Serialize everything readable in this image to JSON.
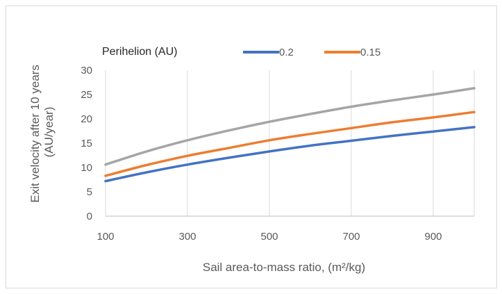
{
  "chart_data": {
    "type": "line",
    "xlabel": "Sail area-to-mass ratio,  (m²/kg)",
    "ylabel_lines": [
      "Exit velocity after 10 years",
      "(AU/year)"
    ],
    "legend_title": "Perihelion (AU)",
    "legend_position": "top",
    "xlim": [
      100,
      1000
    ],
    "ylim": [
      0,
      30
    ],
    "x_ticks": [
      100,
      300,
      500,
      700,
      900
    ],
    "y_ticks": [
      0,
      5,
      10,
      15,
      20,
      25,
      30
    ],
    "grid": "vertical",
    "x": [
      100,
      200,
      300,
      400,
      500,
      600,
      700,
      800,
      900,
      1000
    ],
    "series": [
      {
        "name": "0.2",
        "color": "#4472c4",
        "values": [
          7.2,
          9.0,
          10.6,
          12.0,
          13.3,
          14.5,
          15.5,
          16.5,
          17.4,
          18.3
        ]
      },
      {
        "name": "0.15",
        "color": "#ed7d31",
        "values": [
          8.3,
          10.5,
          12.4,
          14.0,
          15.6,
          16.9,
          18.1,
          19.3,
          20.3,
          21.4
        ]
      },
      {
        "name": "",
        "color": "#a5a5a5",
        "values": [
          10.6,
          13.3,
          15.6,
          17.6,
          19.4,
          21.0,
          22.5,
          23.8,
          25.0,
          26.3
        ]
      }
    ]
  }
}
